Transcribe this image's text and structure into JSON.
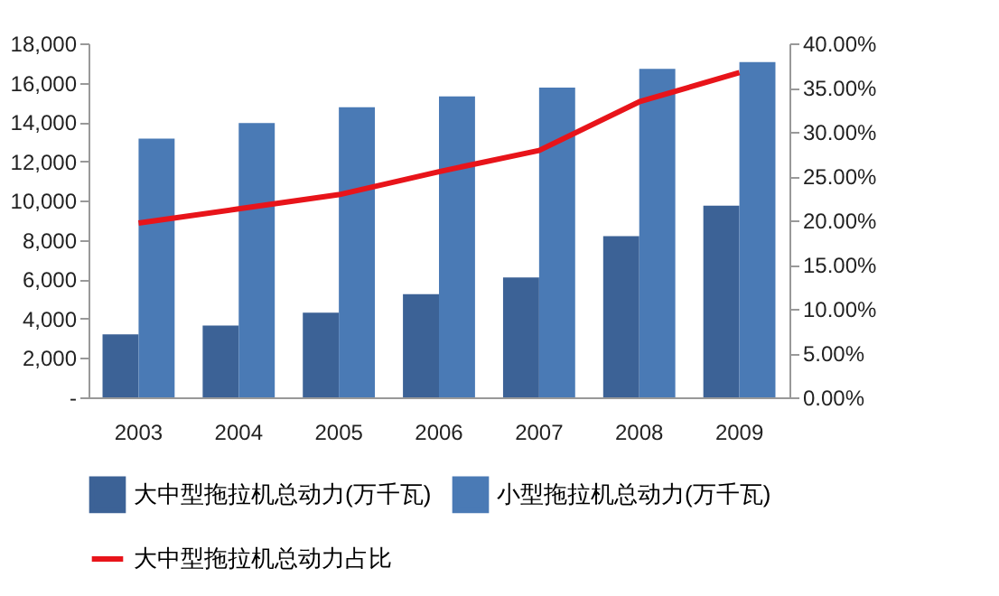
{
  "chart_data": {
    "type": "bar",
    "categories": [
      "2003",
      "2004",
      "2005",
      "2006",
      "2007",
      "2008",
      "2009"
    ],
    "series": [
      {
        "name": "大中型拖拉机总动力(万千瓦)",
        "color": "#3c6296",
        "values": [
          3200,
          3650,
          4300,
          5250,
          6100,
          8200,
          9750
        ]
      },
      {
        "name": "小型拖拉机总动力(万千瓦)",
        "color": "#4a7ab5",
        "values": [
          13150,
          13950,
          14750,
          15300,
          15750,
          16700,
          17050
        ]
      },
      {
        "name": "大中型拖拉机总动力占比",
        "type": "line",
        "axis": "y2",
        "color": "#e8141a",
        "values": [
          19.7,
          21.3,
          22.9,
          25.5,
          27.9,
          33.4,
          36.7
        ]
      }
    ],
    "ylim": [
      0,
      18000
    ],
    "yticks": [
      {
        "value": 0,
        "label": "-"
      },
      {
        "value": 2000,
        "label": "2,000"
      },
      {
        "value": 4000,
        "label": "4,000"
      },
      {
        "value": 6000,
        "label": "6,000"
      },
      {
        "value": 8000,
        "label": "8,000"
      },
      {
        "value": 10000,
        "label": "10,000"
      },
      {
        "value": 12000,
        "label": "12,000"
      },
      {
        "value": 14000,
        "label": "14,000"
      },
      {
        "value": 16000,
        "label": "16,000"
      },
      {
        "value": 18000,
        "label": "18,000"
      }
    ],
    "y2lim": [
      0,
      40
    ],
    "y2ticks": [
      {
        "value": 0,
        "label": "0.00%"
      },
      {
        "value": 5,
        "label": "5.00%"
      },
      {
        "value": 10,
        "label": "10.00%"
      },
      {
        "value": 15,
        "label": "15.00%"
      },
      {
        "value": 20,
        "label": "20.00%"
      },
      {
        "value": 25,
        "label": "25.00%"
      },
      {
        "value": 30,
        "label": "30.00%"
      },
      {
        "value": 35,
        "label": "35.00%"
      },
      {
        "value": 40,
        "label": "40.00%"
      }
    ],
    "grid": false,
    "legend": "bottom",
    "marker": "none",
    "line_style": "solid"
  }
}
